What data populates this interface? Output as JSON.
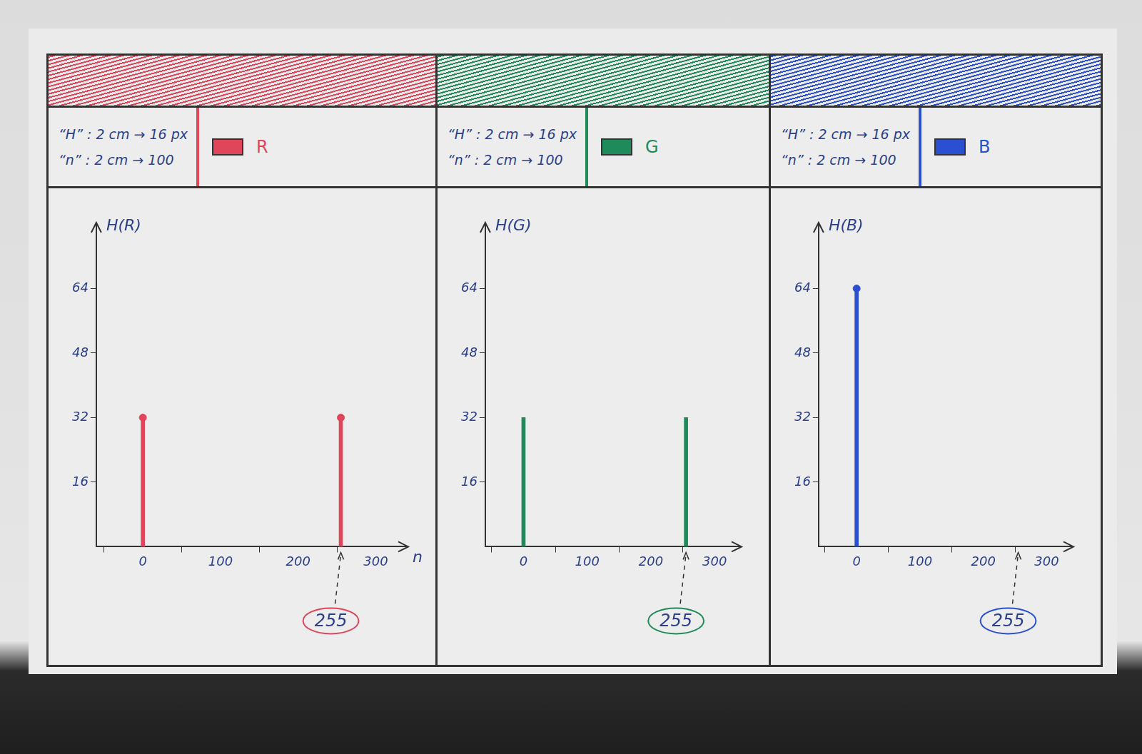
{
  "chart_data": [
    {
      "type": "bar",
      "scale_notes": [
        "“H” : 2 cm → 16 px",
        "“n” : 2 cm → 100"
      ],
      "y_label": "H(R)",
      "x_label": "n",
      "x": [
        0,
        255
      ],
      "series": [
        {
          "name": "R",
          "color": "#e0455a",
          "values": [
            32,
            32
          ],
          "marker": "circle"
        }
      ],
      "xlim": [
        -60,
        340
      ],
      "xticks": [
        0,
        100,
        200,
        300
      ],
      "ylim": [
        0,
        80
      ],
      "yticks": [
        16,
        32,
        48,
        64
      ],
      "grid": false,
      "annotations": [
        {
          "text": "255",
          "x": 255
        }
      ]
    },
    {
      "type": "bar",
      "scale_notes": [
        "“H” : 2 cm → 16 px",
        "“n” : 2 cm → 100"
      ],
      "y_label": "H(G)",
      "x": [
        0,
        255
      ],
      "series": [
        {
          "name": "G",
          "color": "#1f8a5a",
          "values": [
            32,
            32
          ]
        }
      ],
      "xlim": [
        -60,
        340
      ],
      "xticks": [
        0,
        100,
        200,
        300
      ],
      "ylim": [
        0,
        80
      ],
      "yticks": [
        16,
        32,
        48,
        64
      ],
      "grid": false,
      "annotations": [
        {
          "text": "255",
          "x": 255
        }
      ]
    },
    {
      "type": "bar",
      "scale_notes": [
        "“H” : 2 cm → 16 px",
        "“n” : 2 cm → 100"
      ],
      "y_label": "H(B)",
      "x": [
        0
      ],
      "series": [
        {
          "name": "B",
          "color": "#2a4fd0",
          "values": [
            64
          ],
          "marker": "circle"
        }
      ],
      "xlim": [
        -60,
        340
      ],
      "xticks": [
        0,
        100,
        200,
        300
      ],
      "ylim": [
        0,
        80
      ],
      "yticks": [
        16,
        32,
        48,
        64
      ],
      "grid": false,
      "annotations": [
        {
          "text": "255",
          "x": 255
        }
      ]
    }
  ]
}
